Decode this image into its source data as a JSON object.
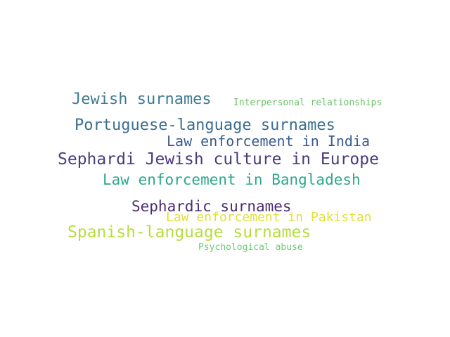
{
  "words": [
    {
      "text": "Jewish surnames",
      "color": "#3f7a92"
    },
    {
      "text": "Interpersonal relationships",
      "color": "#6cc06a"
    },
    {
      "text": "Portuguese-language surnames",
      "color": "#3b6e8f"
    },
    {
      "text": "Law enforcement in India",
      "color": "#3a5b8c"
    },
    {
      "text": "Sephardi Jewish culture in Europe",
      "color": "#4a3b7d"
    },
    {
      "text": "Law enforcement in Bangladesh",
      "color": "#2ea88b"
    },
    {
      "text": "Sephardic surnames",
      "color": "#4b2c72"
    },
    {
      "text": "Law enforcement in Pakistan",
      "color": "#e2e03a"
    },
    {
      "text": "Spanish-language surnames",
      "color": "#b6dd3e"
    },
    {
      "text": "Psychological abuse",
      "color": "#6ccc74"
    }
  ]
}
